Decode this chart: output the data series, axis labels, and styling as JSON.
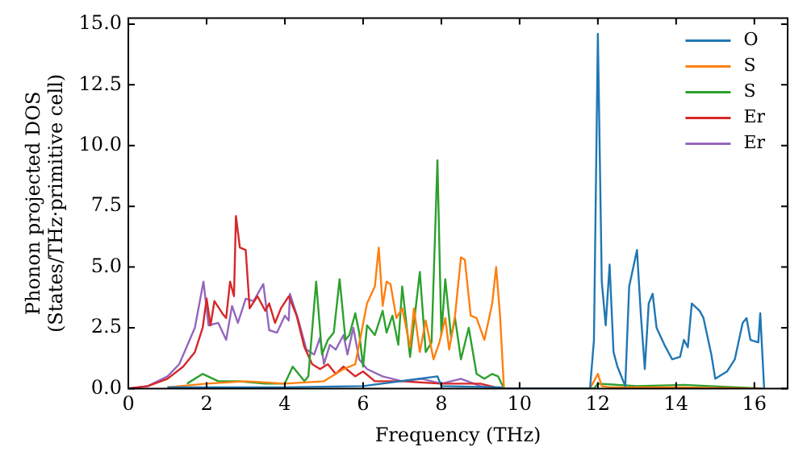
{
  "chart_data": {
    "type": "line",
    "xlabel": "Frequency (THz)",
    "ylabel": "Phonon projected DOS\n(States/THz·primitive cell)",
    "xlim": [
      0,
      16.85
    ],
    "xticks": [
      0,
      2,
      4,
      6,
      8,
      10,
      12,
      14,
      16
    ],
    "ylim": [
      0,
      15.25
    ],
    "yticks": [
      {
        "value": 0,
        "label": "0.0"
      },
      {
        "value": 2.5,
        "label": "2.5"
      },
      {
        "value": 5,
        "label": "5.0"
      },
      {
        "value": 7.5,
        "label": "7.5"
      },
      {
        "value": 10,
        "label": "10.0"
      },
      {
        "value": 12.5,
        "label": "12.5"
      },
      {
        "value": 15,
        "label": "15.0"
      }
    ],
    "grid": false,
    "legend": "top right",
    "marker": "none",
    "line_style": "solid",
    "series": [
      {
        "name": "O",
        "color": "#1f77b4",
        "x": [
          1,
          2,
          4,
          6,
          7.9,
          8.0,
          9.5,
          9.6,
          11.8,
          11.9,
          12.0,
          12.1,
          12.2,
          12.3,
          12.4,
          12.5,
          12.7,
          12.8,
          13.0,
          13.1,
          13.2,
          13.3,
          13.4,
          13.5,
          13.7,
          13.9,
          14.1,
          14.2,
          14.3,
          14.4,
          14.6,
          14.7,
          14.9,
          15.0,
          15.3,
          15.5,
          15.7,
          15.8,
          15.9,
          16.1,
          16.15,
          16.25
        ],
        "values": [
          0.05,
          0.05,
          0.05,
          0.1,
          0.5,
          0.1,
          0.05,
          0,
          0,
          2.0,
          14.6,
          4.4,
          2.6,
          5.1,
          1.5,
          0.9,
          0.1,
          4.2,
          5.7,
          3.0,
          0.8,
          3.5,
          3.9,
          2.5,
          1.8,
          1.2,
          1.3,
          2.0,
          1.7,
          3.5,
          3.2,
          2.9,
          1.4,
          0.4,
          0.7,
          1.2,
          2.7,
          2.9,
          2.0,
          1.9,
          3.1,
          0
        ]
      },
      {
        "name": "S",
        "color": "#ff7f0e",
        "x": [
          1,
          2,
          3,
          4,
          5,
          5.5,
          5.8,
          6.1,
          6.3,
          6.4,
          6.5,
          6.6,
          6.7,
          6.85,
          7.0,
          7.2,
          7.3,
          7.45,
          7.6,
          7.8,
          7.95,
          8.1,
          8.2,
          8.35,
          8.5,
          8.6,
          8.75,
          8.9,
          9.1,
          9.3,
          9.4,
          9.5,
          9.6,
          11.8,
          12.0,
          12.1,
          12.3,
          14,
          16.2
        ],
        "values": [
          0.05,
          0.2,
          0.3,
          0.2,
          0.3,
          0.8,
          1.0,
          3.5,
          4.2,
          5.8,
          3.4,
          4.4,
          4.3,
          2.9,
          3.3,
          1.7,
          3.3,
          1.5,
          2.8,
          1.2,
          1.9,
          2.9,
          1.6,
          3.0,
          5.4,
          5.3,
          3.0,
          2.9,
          2.0,
          3.5,
          5.0,
          3.0,
          0,
          0,
          0.6,
          0.1,
          0.05,
          0.05,
          0
        ]
      },
      {
        "name": "S",
        "color": "#2ca02c",
        "x": [
          1.5,
          1.9,
          2.3,
          2.8,
          3.5,
          4.0,
          4.2,
          4.5,
          4.6,
          4.8,
          4.95,
          5.1,
          5.25,
          5.4,
          5.55,
          5.65,
          5.8,
          5.9,
          6.0,
          6.1,
          6.3,
          6.5,
          6.6,
          6.75,
          6.9,
          7.0,
          7.2,
          7.45,
          7.6,
          7.75,
          7.9,
          8.0,
          8.1,
          8.25,
          8.35,
          8.5,
          8.7,
          8.9,
          9.1,
          9.3,
          9.45,
          9.6,
          11.9,
          12.0,
          13.0,
          14.2,
          16.2
        ],
        "values": [
          0.2,
          0.6,
          0.3,
          0.3,
          0.2,
          0.2,
          0.9,
          0.3,
          0.5,
          4.4,
          1.4,
          2.0,
          2.3,
          4.5,
          2.0,
          2.2,
          3.1,
          2.3,
          0.9,
          2.6,
          2.2,
          3.2,
          2.3,
          3.0,
          1.8,
          4.2,
          1.3,
          4.8,
          1.5,
          1.9,
          9.4,
          2.2,
          4.5,
          2.1,
          2.9,
          1.2,
          2.5,
          0.6,
          0.4,
          0.6,
          0.5,
          0,
          0,
          0.2,
          0.1,
          0.15,
          0
        ]
      },
      {
        "name": "Er",
        "color": "#d62728",
        "x": [
          0,
          0.5,
          1.0,
          1.4,
          1.7,
          1.9,
          2.0,
          2.1,
          2.2,
          2.4,
          2.5,
          2.6,
          2.7,
          2.75,
          2.85,
          3.0,
          3.1,
          3.3,
          3.5,
          3.6,
          3.75,
          3.9,
          4.1,
          4.3,
          4.5,
          4.7,
          4.9,
          5.1,
          5.3,
          5.5,
          5.8,
          6.0,
          6.3,
          7.0,
          8.0,
          9.0,
          9.5
        ],
        "values": [
          0,
          0.1,
          0.4,
          0.9,
          1.5,
          2.5,
          3.7,
          2.6,
          3.6,
          3.1,
          2.9,
          4.4,
          3.8,
          7.1,
          5.8,
          5.7,
          3.3,
          3.8,
          3.2,
          3.5,
          2.7,
          3.3,
          3.8,
          3.0,
          1.7,
          1.0,
          0.8,
          1.0,
          0.6,
          0.9,
          0.5,
          0.7,
          0.3,
          0.3,
          0.2,
          0.2,
          0
        ]
      },
      {
        "name": "Er",
        "color": "#9467bd",
        "x": [
          0,
          0.5,
          1.0,
          1.3,
          1.7,
          1.92,
          2.05,
          2.3,
          2.5,
          2.65,
          2.8,
          3.0,
          3.2,
          3.45,
          3.6,
          3.8,
          4.0,
          4.1,
          4.13,
          4.35,
          4.55,
          4.75,
          4.9,
          5.0,
          5.15,
          5.3,
          5.5,
          5.6,
          5.75,
          5.9,
          6.1,
          6.5,
          7.0,
          7.5,
          8.0,
          8.5,
          9.0,
          9.4
        ],
        "values": [
          0,
          0.1,
          0.5,
          1.0,
          2.5,
          4.4,
          2.6,
          2.7,
          2.0,
          3.4,
          2.7,
          3.7,
          3.6,
          4.3,
          2.4,
          2.3,
          3.0,
          2.8,
          3.9,
          2.8,
          1.6,
          1.4,
          2.1,
          1.0,
          1.8,
          1.6,
          2.2,
          1.4,
          2.5,
          1.2,
          0.8,
          0.5,
          0.3,
          0.4,
          0.2,
          0.4,
          0.1,
          0
        ]
      }
    ]
  }
}
